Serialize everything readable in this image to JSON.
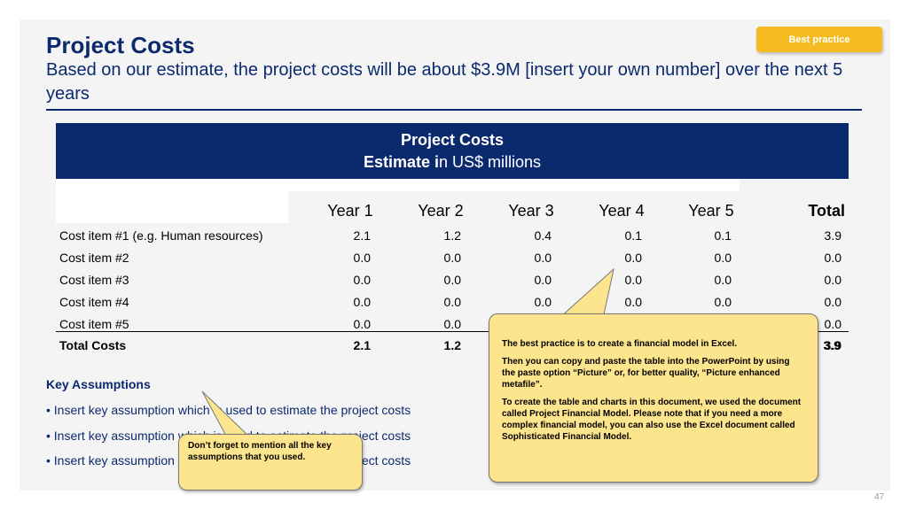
{
  "badge": "Best practice",
  "title": "Project Costs",
  "subtitle": "Based on our estimate, the project costs will be about $3.9M [insert your own number] over the next 5 years",
  "table": {
    "header_title": "Project Costs",
    "header_sub_bold": "Estimate i",
    "header_sub_rest": "n US$ millions",
    "columns": [
      "Year 1",
      "Year 2",
      "Year 3",
      "Year 4",
      "Year 5",
      "Total"
    ],
    "rows": [
      {
        "label": "Cost item #1 (e.g. Human resources)",
        "values": [
          "2.1",
          "1.2",
          "0.4",
          "0.1",
          "0.1",
          "3.9"
        ]
      },
      {
        "label": "Cost item #2",
        "values": [
          "0.0",
          "0.0",
          "0.0",
          "0.0",
          "0.0",
          "0.0"
        ]
      },
      {
        "label": "Cost item #3",
        "values": [
          "0.0",
          "0.0",
          "0.0",
          "0.0",
          "0.0",
          "0.0"
        ]
      },
      {
        "label": "Cost item #4",
        "values": [
          "0.0",
          "0.0",
          "0.0",
          "0.0",
          "0.0",
          "0.0"
        ]
      },
      {
        "label": "Cost item #5",
        "values": [
          "0.0",
          "0.0",
          "",
          "",
          "",
          "0.0"
        ]
      }
    ],
    "total": {
      "label": "Total Costs",
      "values": [
        "2.1",
        "1.2",
        "",
        "",
        "",
        "3.9"
      ]
    }
  },
  "assumptions": {
    "title": "Key Assumptions",
    "bullets": [
      "• Insert key assumption which is used to estimate the project costs",
      "• Insert key assumption which is used to estimate the project costs",
      "• Insert key assumption which is used to estimate the project costs"
    ]
  },
  "callout_small": "Don’t forget to mention all the key assumptions that you used.",
  "callout_large": {
    "p1": "The best practice is to create a financial model in Excel.",
    "p2": "Then you can copy and paste the table into the PowerPoint by using the paste option “Picture” or, for better quality, “Picture enhanced metafile”.",
    "p3": "To create the table and charts in this document, we used the document called Project Financial Model. Please note that if you need a more complex financial model, you can also use the Excel document called Sophisticated Financial Model."
  },
  "page_number": "47",
  "colors": {
    "navy": "#0b2a6e",
    "badge": "#f5bb22",
    "callout": "#fde58d"
  }
}
